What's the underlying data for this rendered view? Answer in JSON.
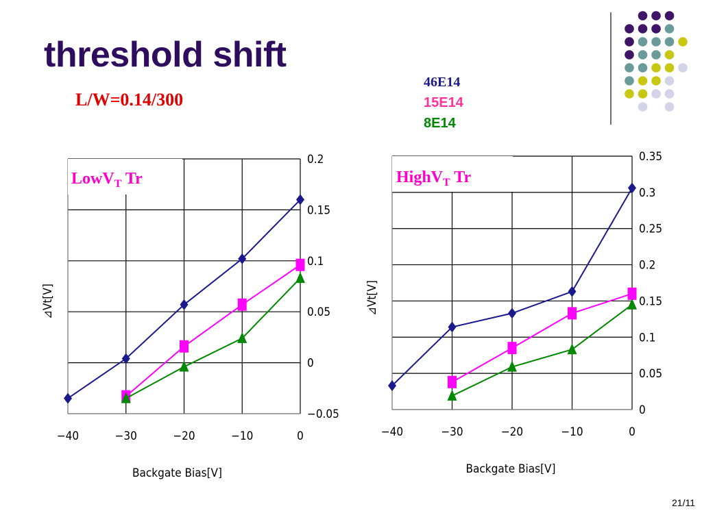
{
  "slide": {
    "title": "threshold shift",
    "subtitle": "L/W=0.14/300",
    "page_number": "21/11"
  },
  "legend": [
    {
      "label": "46E14",
      "color": "#1a1a8c"
    },
    {
      "label": "15E14",
      "color": "#ff3399"
    },
    {
      "label": "8E14",
      "color": "#008800"
    }
  ],
  "colors": {
    "title": "#2e0c5e",
    "dots_purple": "#3d1466",
    "dots_teal": "#6b9a9a",
    "dots_yellow": "#c8c814",
    "dots_lavender": "#d4d4e8"
  },
  "chart_data": [
    {
      "type": "line",
      "title": "LowVT Tr",
      "xlabel": "Backgate Bias[V]",
      "ylabel": "⊿Vt[V]",
      "x": [
        -40,
        -30,
        -20,
        -10,
        0
      ],
      "xlim": [
        -40,
        0
      ],
      "ylim": [
        -0.05,
        0.2
      ],
      "x_ticks": [
        "-40",
        "-30",
        "-20",
        "-10",
        "0"
      ],
      "y_ticks": [
        "0.2",
        "0.15",
        "0.1",
        "0.05",
        "0",
        "-0.05"
      ],
      "series": [
        {
          "marker": "diamond",
          "color": "#1a1a8c",
          "points": [
            [
              -40,
              -0.035
            ],
            [
              -30,
              0.004
            ],
            [
              -20,
              0.057
            ],
            [
              -10,
              0.102
            ],
            [
              0,
              0.16
            ]
          ]
        },
        {
          "marker": "square",
          "color": "#ff00ff",
          "points": [
            [
              -30,
              -0.033
            ],
            [
              -20,
              0.016
            ],
            [
              -10,
              0.057
            ],
            [
              0,
              0.096
            ]
          ]
        },
        {
          "marker": "triangle",
          "color": "#008800",
          "points": [
            [
              -30,
              -0.035
            ],
            [
              -20,
              -0.004
            ],
            [
              -10,
              0.024
            ],
            [
              0,
              0.083
            ]
          ]
        }
      ]
    },
    {
      "type": "line",
      "title": "HighVT Tr",
      "xlabel": "Backgate Bias[V]",
      "ylabel": "⊿Vt[V]",
      "x": [
        -40,
        -30,
        -20,
        -10,
        0
      ],
      "xlim": [
        -40,
        0
      ],
      "ylim": [
        0,
        0.35
      ],
      "x_ticks": [
        "-40",
        "-30",
        "-20",
        "-10",
        "0"
      ],
      "y_ticks": [
        "0.35",
        "0.3",
        "0.25",
        "0.2",
        "0.15",
        "0.1",
        "0.05",
        "0"
      ],
      "series": [
        {
          "marker": "diamond",
          "color": "#1a1a8c",
          "points": [
            [
              -40,
              0.033
            ],
            [
              -30,
              0.114
            ],
            [
              -20,
              0.133
            ],
            [
              -10,
              0.163
            ],
            [
              0,
              0.306
            ]
          ]
        },
        {
          "marker": "square",
          "color": "#ff00ff",
          "points": [
            [
              -30,
              0.038
            ],
            [
              -20,
              0.085
            ],
            [
              -10,
              0.133
            ],
            [
              0,
              0.16
            ]
          ]
        },
        {
          "marker": "triangle",
          "color": "#008800",
          "points": [
            [
              -30,
              0.019
            ],
            [
              -20,
              0.059
            ],
            [
              -10,
              0.083
            ],
            [
              0,
              0.145
            ]
          ]
        }
      ]
    }
  ]
}
